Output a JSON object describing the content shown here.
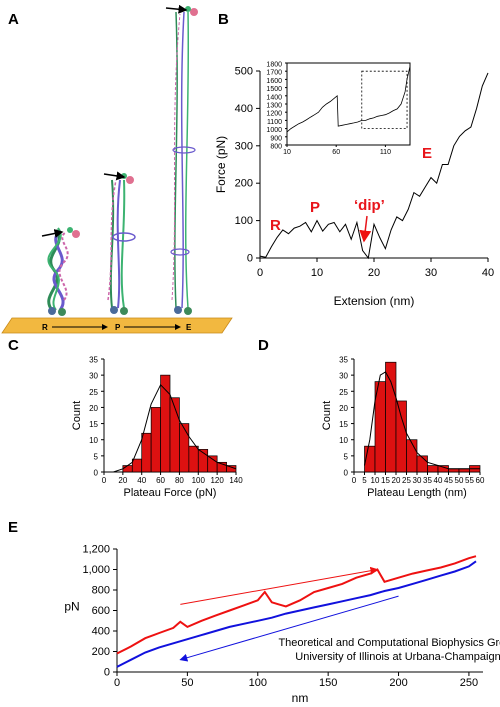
{
  "panels": {
    "A": {
      "label": "A",
      "stage_labels": [
        "R",
        "P",
        "E"
      ]
    },
    "B": {
      "label": "B",
      "state_labels": {
        "R": "R",
        "P": "P",
        "E": "E",
        "dip": "‘dip’"
      }
    },
    "C": {
      "label": "C"
    },
    "D": {
      "label": "D"
    },
    "E": {
      "label": "E",
      "credit_line1": "Theoretical and Computational Biophysics Group",
      "credit_line2": "University of Illinois at Urbana-Champaign"
    }
  },
  "colors": {
    "bar_fill": "#dd1111",
    "pull_curve": "#ee1111",
    "release_curve": "#1111dd",
    "annotation": "#e8141a",
    "surface": "#f2b840"
  },
  "chart_data": [
    {
      "panel": "B",
      "type": "line",
      "xlabel": "Extension (nm)",
      "ylabel": "Force (pN)",
      "xlim": [
        0,
        40
      ],
      "ylim": [
        0,
        500
      ],
      "xticks": [
        0,
        10,
        20,
        30,
        40
      ],
      "yticks": [
        0,
        100,
        200,
        300,
        400,
        500
      ],
      "x": [
        0,
        1,
        2,
        3,
        4,
        5,
        6,
        7,
        8,
        9,
        10,
        11,
        12,
        13,
        14,
        15,
        16,
        17,
        18,
        19,
        20,
        21,
        22,
        23,
        24,
        25,
        26,
        27,
        28,
        29,
        30,
        31,
        32,
        33,
        34,
        35,
        36,
        37,
        38,
        39,
        40
      ],
      "y": [
        5,
        2,
        30,
        55,
        75,
        65,
        80,
        85,
        95,
        70,
        100,
        72,
        90,
        95,
        70,
        90,
        50,
        95,
        20,
        0,
        90,
        55,
        25,
        75,
        110,
        100,
        130,
        175,
        165,
        190,
        215,
        200,
        250,
        250,
        300,
        325,
        340,
        350,
        400,
        460,
        495
      ],
      "inset": {
        "xlim": [
          10,
          135
        ],
        "ylim": [
          800,
          1800
        ],
        "xticks": [
          10,
          60,
          110
        ],
        "yticks": [
          800,
          900,
          1000,
          1100,
          1200,
          1300,
          1400,
          1500,
          1600,
          1700,
          1800
        ],
        "x": [
          10,
          14,
          18,
          22,
          26,
          30,
          34,
          38,
          42,
          46,
          50,
          54,
          58,
          61,
          62,
          66,
          70,
          74,
          78,
          82,
          86,
          90,
          94,
          98,
          102,
          106,
          110,
          114,
          118,
          122,
          126,
          130,
          132,
          135
        ],
        "y": [
          960,
          1000,
          1030,
          1060,
          1080,
          1110,
          1140,
          1170,
          1200,
          1260,
          1300,
          1330,
          1370,
          1400,
          1030,
          1040,
          1050,
          1060,
          1070,
          1080,
          1100,
          1100,
          1120,
          1130,
          1150,
          1160,
          1170,
          1190,
          1220,
          1240,
          1300,
          1450,
          1600,
          1760
        ],
        "zoom_box": {
          "x": [
            86,
            132
          ],
          "y": [
            1000,
            1700
          ]
        }
      }
    },
    {
      "panel": "C",
      "type": "bar",
      "xlabel": "Plateau Force (pN)",
      "ylabel": "Count",
      "xlim": [
        0,
        140
      ],
      "ylim": [
        0,
        35
      ],
      "xticks": [
        0,
        20,
        40,
        60,
        80,
        100,
        120,
        140
      ],
      "yticks": [
        0,
        5,
        10,
        15,
        20,
        25,
        30,
        35
      ],
      "bin_edges": [
        20,
        30,
        40,
        50,
        60,
        70,
        80,
        90,
        100,
        110,
        120,
        130,
        140
      ],
      "values": [
        2,
        4,
        12,
        20,
        30,
        23,
        15,
        8,
        7,
        5,
        3,
        2
      ],
      "fit_curve": {
        "x": [
          10,
          20,
          30,
          40,
          50,
          60,
          70,
          80,
          90,
          100,
          110,
          120,
          130,
          140
        ],
        "y": [
          0,
          1,
          3,
          10,
          21,
          27,
          24,
          16,
          11,
          7,
          5,
          3,
          2,
          1
        ]
      }
    },
    {
      "panel": "D",
      "type": "bar",
      "xlabel": "Plateau Length (nm)",
      "ylabel": "Count",
      "xlim": [
        0,
        60
      ],
      "ylim": [
        0,
        35
      ],
      "xticks": [
        0,
        5,
        10,
        15,
        20,
        25,
        30,
        35,
        40,
        45,
        50,
        55,
        60
      ],
      "yticks": [
        0,
        5,
        10,
        15,
        20,
        25,
        30,
        35
      ],
      "bin_edges": [
        5,
        10,
        15,
        20,
        25,
        30,
        35,
        40,
        45,
        50,
        55,
        60
      ],
      "values": [
        8,
        28,
        34,
        22,
        10,
        5,
        2,
        2,
        1,
        1,
        2
      ],
      "fit_curve": {
        "x": [
          5,
          7.5,
          10,
          12.5,
          15,
          17.5,
          20,
          22.5,
          25,
          30,
          35,
          40,
          45,
          50,
          55,
          60
        ],
        "y": [
          2,
          10,
          22,
          30,
          31,
          28,
          23,
          17,
          12,
          6,
          3,
          2,
          1,
          1,
          1,
          1
        ]
      }
    },
    {
      "panel": "E",
      "type": "line",
      "xlabel": "nm",
      "ylabel": "pN",
      "xlim": [
        0,
        260
      ],
      "ylim": [
        0,
        1200
      ],
      "xticks": [
        0,
        50,
        100,
        150,
        200,
        250
      ],
      "yticks": [
        0,
        200,
        400,
        600,
        800,
        1000,
        1200
      ],
      "ytick_labels": [
        "0",
        "200",
        "400",
        "600",
        "800",
        "1,000",
        "1,200"
      ],
      "series": [
        {
          "x": [
            0,
            10,
            20,
            30,
            40,
            45,
            50,
            60,
            70,
            80,
            90,
            100,
            105,
            110,
            115,
            120,
            130,
            140,
            150,
            160,
            170,
            180,
            185,
            190,
            200,
            210,
            220,
            230,
            240,
            250,
            255
          ],
          "y": [
            180,
            250,
            330,
            380,
            430,
            490,
            440,
            500,
            550,
            600,
            650,
            700,
            780,
            680,
            660,
            640,
            700,
            780,
            820,
            860,
            920,
            960,
            1000,
            880,
            920,
            960,
            990,
            1020,
            1060,
            1110,
            1130
          ]
        },
        {
          "x": [
            0,
            10,
            20,
            30,
            40,
            50,
            60,
            70,
            80,
            90,
            100,
            110,
            120,
            130,
            140,
            150,
            160,
            170,
            180,
            190,
            200,
            210,
            220,
            230,
            240,
            250,
            255
          ],
          "y": [
            50,
            120,
            190,
            240,
            280,
            320,
            360,
            400,
            440,
            470,
            500,
            530,
            570,
            600,
            630,
            660,
            690,
            720,
            750,
            790,
            820,
            860,
            900,
            940,
            980,
            1030,
            1080
          ]
        }
      ],
      "arrows": [
        {
          "from": [
            45,
            660
          ],
          "to": [
            185,
            1000
          ]
        },
        {
          "from": [
            200,
            740
          ],
          "to": [
            45,
            120
          ]
        }
      ]
    }
  ]
}
